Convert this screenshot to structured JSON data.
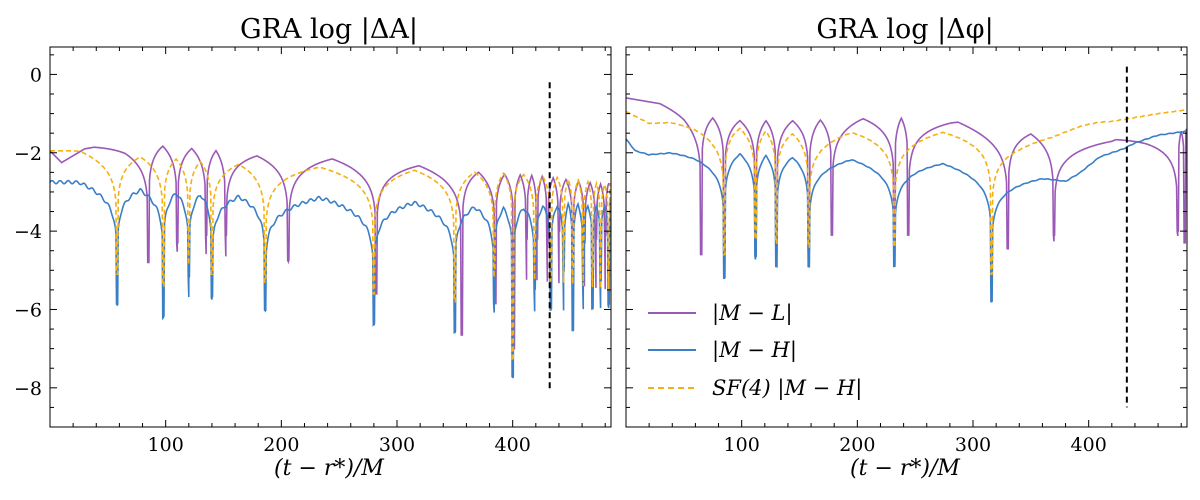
{
  "chart_data": [
    {
      "type": "line",
      "title": "GRA log |ΔA|",
      "xlabel": "(t − r*)/M",
      "ylabel": "",
      "xlim": [
        0,
        485
      ],
      "ylim": [
        -9,
        0.7
      ],
      "xticks": [
        100,
        200,
        300,
        400
      ],
      "yticks": [
        0,
        -2,
        -4,
        -6,
        -8
      ],
      "ytick_labels": [
        "0",
        "−2",
        "−4",
        "−6",
        "−8"
      ],
      "vline_x": 432,
      "vline_range": [
        -8.1,
        -0.2
      ],
      "series": [
        {
          "name": "|M − L|",
          "color": "#9b59b6",
          "style": "solid",
          "base": [
            [
              0,
              -1.95
            ],
            [
              10,
              -2.25
            ],
            [
              30,
              -1.9
            ],
            [
              65,
              -1.72
            ],
            [
              90,
              -1.78
            ],
            [
              140,
              -1.9
            ],
            [
              180,
              -2.05
            ],
            [
              230,
              -2.1
            ],
            [
              260,
              -2.15
            ],
            [
              300,
              -2.25
            ],
            [
              340,
              -2.35
            ],
            [
              380,
              -2.5
            ],
            [
              420,
              -2.55
            ],
            [
              485,
              -2.8
            ]
          ],
          "dips": [
            [
              85,
              -4.8
            ],
            [
              110,
              -4.3
            ],
            [
              135,
              -4.1
            ],
            [
              152,
              -4.1
            ],
            [
              206,
              -4.75
            ],
            [
              282,
              -5.6
            ],
            [
              356,
              -6.65
            ],
            [
              385,
              -5.85
            ],
            [
              401,
              -7.0
            ],
            [
              412,
              -4.2
            ],
            [
              421,
              -4.2
            ],
            [
              430,
              -4.3
            ],
            [
              440,
              -4.0
            ],
            [
              452,
              -4.2
            ],
            [
              462,
              -4.3
            ],
            [
              472,
              -4.2
            ],
            [
              480,
              -4.1
            ]
          ],
          "spike": 0
        },
        {
          "name": "|M − H|",
          "color": "#3a7fc6",
          "style": "solid",
          "base": [
            [
              0,
              -2.75
            ],
            [
              20,
              -2.75
            ],
            [
              70,
              -2.9
            ],
            [
              110,
              -3.0
            ],
            [
              150,
              -3.08
            ],
            [
              200,
              -3.12
            ],
            [
              240,
              -3.12
            ],
            [
              280,
              -3.2
            ],
            [
              320,
              -3.25
            ],
            [
              360,
              -3.35
            ],
            [
              400,
              -3.4
            ],
            [
              440,
              -3.3
            ],
            [
              485,
              -3.3
            ]
          ],
          "dips": [
            [
              58,
              -5.9
            ],
            [
              98,
              -6.2
            ],
            [
              120,
              -5.2
            ],
            [
              140,
              -5.7
            ],
            [
              186,
              -6.0
            ],
            [
              280,
              -6.4
            ],
            [
              350,
              -6.6
            ],
            [
              384,
              -5.8
            ],
            [
              400,
              -7.75
            ],
            [
              419,
              -5.5
            ],
            [
              433,
              -6.0
            ],
            [
              444,
              -5.0
            ],
            [
              452,
              -6.5
            ],
            [
              461,
              -5.3
            ],
            [
              469,
              -6.0
            ],
            [
              476,
              -5.3
            ],
            [
              483,
              -5.9
            ]
          ],
          "spike": 0.8
        },
        {
          "name": "SF(4) |M − H|",
          "color": "#f5b014",
          "style": "dashed",
          "base": [
            [
              0,
              -1.95
            ],
            [
              20,
              -1.95
            ],
            [
              60,
              -2.05
            ],
            [
              100,
              -2.1
            ],
            [
              150,
              -2.25
            ],
            [
              200,
              -2.3
            ],
            [
              250,
              -2.35
            ],
            [
              300,
              -2.4
            ],
            [
              350,
              -2.45
            ],
            [
              400,
              -2.5
            ],
            [
              440,
              -2.6
            ],
            [
              485,
              -2.8
            ]
          ],
          "dips": [
            [
              58,
              -5.1
            ],
            [
              98,
              -5.4
            ],
            [
              120,
              -4.5
            ],
            [
              140,
              -5.1
            ],
            [
              186,
              -5.3
            ],
            [
              280,
              -5.6
            ],
            [
              350,
              -5.8
            ],
            [
              384,
              -5.0
            ],
            [
              400,
              -7.3
            ],
            [
              419,
              -4.6
            ],
            [
              433,
              -5.2
            ],
            [
              444,
              -4.3
            ],
            [
              452,
              -5.0
            ],
            [
              461,
              -4.3
            ],
            [
              469,
              -5.0
            ],
            [
              476,
              -4.4
            ],
            [
              483,
              -4.8
            ]
          ],
          "spike": 0
        }
      ]
    },
    {
      "type": "line",
      "title": "GRA log |Δφ|",
      "xlabel": "(t − r*)/M",
      "ylabel": "",
      "xlim": [
        0,
        485
      ],
      "ylim": [
        -9,
        0.7
      ],
      "xticks": [
        100,
        200,
        300,
        400
      ],
      "yticks": [
        0,
        -2,
        -4,
        -6,
        -8
      ],
      "vline_x": 433,
      "vline_range": [
        -8.5,
        0.2
      ],
      "legend": [
        "|M − L|",
        "|M − H|",
        "SF(4) |M − H|"
      ],
      "legend_position": "bottom-left",
      "series": [
        {
          "name": "|M − L|",
          "color": "#9b59b6",
          "style": "solid",
          "base": [
            [
              0,
              -0.6
            ],
            [
              20,
              -0.7
            ],
            [
              50,
              -0.85
            ],
            [
              65,
              -1.05
            ],
            [
              100,
              -1.15
            ],
            [
              150,
              -1.15
            ],
            [
              200,
              -1.1
            ],
            [
              250,
              -1.08
            ],
            [
              280,
              -1.15
            ],
            [
              310,
              -1.3
            ],
            [
              340,
              -1.45
            ],
            [
              380,
              -1.6
            ],
            [
              420,
              -1.65
            ],
            [
              450,
              -1.5
            ],
            [
              485,
              -1.4
            ]
          ],
          "dips": [
            [
              65,
              -4.6
            ],
            [
              85,
              -4.5
            ],
            [
              112,
              -4.6
            ],
            [
              130,
              -4.5
            ],
            [
              158,
              -4.5
            ],
            [
              178,
              -4.1
            ],
            [
              232,
              -4.3
            ],
            [
              244,
              -4.1
            ],
            [
              330,
              -4.45
            ],
            [
              370,
              -4.1
            ],
            [
              477,
              -4.0
            ],
            [
              483,
              -4.3
            ]
          ],
          "spike": 0
        },
        {
          "name": "|M − H|",
          "color": "#3a7fc6",
          "style": "solid",
          "base": [
            [
              0,
              -1.65
            ],
            [
              8,
              -1.95
            ],
            [
              20,
              -2.05
            ],
            [
              60,
              -1.95
            ],
            [
              100,
              -2.0
            ],
            [
              150,
              -2.1
            ],
            [
              200,
              -2.15
            ],
            [
              250,
              -2.2
            ],
            [
              300,
              -2.3
            ],
            [
              330,
              -2.35
            ],
            [
              360,
              -2.4
            ],
            [
              380,
              -2.6
            ],
            [
              392,
              -2.45
            ],
            [
              410,
              -2.1
            ],
            [
              430,
              -1.9
            ],
            [
              440,
              -1.75
            ],
            [
              460,
              -1.55
            ],
            [
              485,
              -1.45
            ]
          ],
          "dips": [
            [
              85,
              -5.2
            ],
            [
              112,
              -4.65
            ],
            [
              130,
              -4.9
            ],
            [
              158,
              -4.9
            ],
            [
              232,
              -4.9
            ],
            [
              316,
              -5.8
            ]
          ],
          "spike": 0.15
        },
        {
          "name": "SF(4) |M − H|",
          "color": "#f5b014",
          "style": "dashed",
          "base": [
            [
              0,
              -0.95
            ],
            [
              20,
              -1.25
            ],
            [
              60,
              -1.2
            ],
            [
              100,
              -1.35
            ],
            [
              150,
              -1.5
            ],
            [
              200,
              -1.45
            ],
            [
              250,
              -1.45
            ],
            [
              300,
              -1.45
            ],
            [
              340,
              -1.45
            ],
            [
              370,
              -1.4
            ],
            [
              395,
              -1.25
            ],
            [
              420,
              -1.2
            ],
            [
              440,
              -1.1
            ],
            [
              460,
              -1.0
            ],
            [
              485,
              -0.9
            ]
          ],
          "dips": [
            [
              85,
              -4.6
            ],
            [
              112,
              -4.2
            ],
            [
              130,
              -4.3
            ],
            [
              158,
              -4.4
            ],
            [
              232,
              -4.4
            ],
            [
              316,
              -5.1
            ]
          ],
          "spike": 0.1
        }
      ]
    }
  ]
}
